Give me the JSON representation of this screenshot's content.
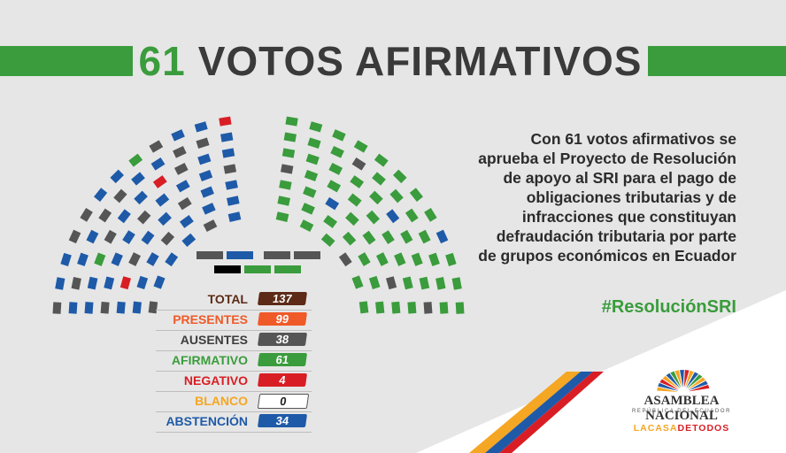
{
  "title": {
    "number": "61",
    "text": "VOTOS AFIRMATIVOS"
  },
  "description": "Con 61 votos afirmativos se aprueba el Proyecto de Resolución de apoyo al SRI para el pago de obligaciones tributarias y de infracciones que constituyan defraudación tributaria por parte de grupos económicos en Ecuador",
  "hashtag": "#ResoluciónSRI",
  "stats": [
    {
      "label": "TOTAL",
      "value": "137",
      "label_color": "#5c2a16",
      "value_color": "#5c2a16"
    },
    {
      "label": "PRESENTES",
      "value": "99",
      "label_color": "#f05a28",
      "value_color": "#f05a28"
    },
    {
      "label": "AUSENTES",
      "value": "38",
      "label_color": "#3d3d3d",
      "value_color": "#555555"
    },
    {
      "label": "AFIRMATIVO",
      "value": "61",
      "label_color": "#3a9c3c",
      "value_color": "#3a9c3c"
    },
    {
      "label": "NEGATIVO",
      "value": "4",
      "label_color": "#d81e24",
      "value_color": "#d81e24"
    },
    {
      "label": "BLANCO",
      "value": "0",
      "label_color": "#f5a623",
      "value_color": "#ffffff"
    },
    {
      "label": "ABSTENCIÓN",
      "value": "34",
      "label_color": "#1e5aa8",
      "value_color": "#1e5aa8"
    }
  ],
  "seat_colors": {
    "afirmativo": "#3a9c3c",
    "negativo": "#d81e24",
    "abstencion": "#1e5aa8",
    "ausente": "#555555",
    "blanco": "#ffffff",
    "presidencia": "#000000"
  },
  "logo": {
    "name": "ASAMBLEA NACIONAL",
    "subtitle": "REPÚBLICA DEL ECUADOR",
    "slogan_part1": "LACASA",
    "slogan_part2": "DETODOS"
  }
}
